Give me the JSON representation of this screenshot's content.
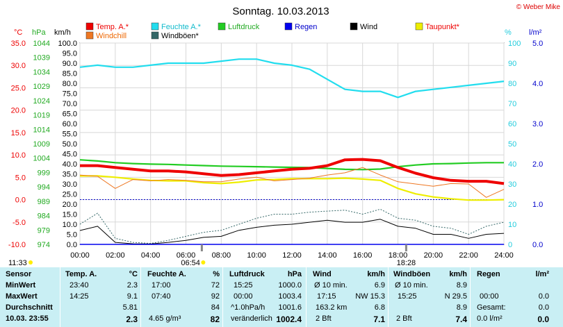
{
  "page": {
    "title": "Sonntag. 10.03.2013",
    "copyright": "© Weber Mike",
    "sun_times": {
      "rise_left": "06:54",
      "set": "18:28",
      "night_left": "11:33"
    }
  },
  "legend": [
    {
      "label": "Temp. A.*",
      "color": "#ee0000"
    },
    {
      "label": "Feuchte A.*",
      "color": "#22ddee"
    },
    {
      "label": "Luftdruck",
      "color": "#22cc22"
    },
    {
      "label": "Regen",
      "color": "#0000ee"
    },
    {
      "label": "Wind",
      "color": "#000000"
    },
    {
      "label": "Taupunkt*",
      "color": "#eeee00"
    },
    {
      "label": "Windchill",
      "color": "#ee7722"
    },
    {
      "label": "Windböen*",
      "color": "#336666"
    }
  ],
  "axes": {
    "temp": {
      "unit": "°C",
      "ticks": [
        "35.0",
        "30.0",
        "25.0",
        "20.0",
        "15.0",
        "10.0",
        "5.0",
        "0.0",
        "-5.0",
        "-10.0"
      ],
      "color": "#ee0000"
    },
    "pressure": {
      "unit": "hPa",
      "ticks": [
        "1044",
        "1039",
        "1034",
        "1029",
        "1024",
        "1019",
        "1014",
        "1009",
        "1004",
        "999",
        "994",
        "989",
        "984",
        "979",
        "974"
      ],
      "color": "#22aa22"
    },
    "wind": {
      "unit": "km/h",
      "ticks": [
        "100.0",
        "95.0",
        "90.0",
        "85.0",
        "80.0",
        "75.0",
        "70.0",
        "65.0",
        "60.0",
        "55.0",
        "50.0",
        "45.0",
        "40.0",
        "35.0",
        "30.0",
        "25.0",
        "20.0",
        "15.0",
        "10.0",
        "5.0",
        "0.0"
      ],
      "color": "#000000"
    },
    "humidity": {
      "unit": "%",
      "ticks": [
        "100",
        "90",
        "80",
        "70",
        "60",
        "50",
        "40",
        "30",
        "20",
        "10",
        "0"
      ],
      "color": "#22ccdd"
    },
    "rain": {
      "unit": "l/m²",
      "ticks": [
        "5.0",
        "4.0",
        "3.0",
        "2.0",
        "1.0",
        "0.0"
      ],
      "color": "#0000cc"
    },
    "time": {
      "ticks": [
        "00:00",
        "02:00",
        "04:00",
        "06:00",
        "08:00",
        "10:00",
        "12:00",
        "14:00",
        "16:00",
        "18:00",
        "20:00",
        "22:00",
        "24:00"
      ]
    }
  },
  "chart_data": {
    "type": "line",
    "title": "Sonntag. 10.03.2013",
    "x": [
      "00:00",
      "01:00",
      "02:00",
      "03:00",
      "04:00",
      "05:00",
      "06:00",
      "07:00",
      "08:00",
      "09:00",
      "10:00",
      "11:00",
      "12:00",
      "13:00",
      "14:00",
      "15:00",
      "16:00",
      "17:00",
      "18:00",
      "19:00",
      "20:00",
      "21:00",
      "22:00",
      "23:00",
      "24:00"
    ],
    "xlim": [
      "00:00",
      "24:00"
    ],
    "series": [
      {
        "name": "Temp. A.*",
        "axis": "°C",
        "ylim": [
          -10,
          35
        ],
        "color": "#ee0000",
        "values": [
          7.6,
          7.6,
          7.2,
          6.8,
          6.4,
          6.4,
          6.2,
          5.8,
          5.4,
          5.6,
          6.0,
          6.4,
          6.8,
          7.0,
          7.6,
          8.9,
          9.0,
          8.7,
          7.2,
          5.9,
          4.9,
          4.3,
          4.1,
          4.1,
          3.6
        ]
      },
      {
        "name": "Feuchte A.*",
        "axis": "%",
        "ylim": [
          0,
          100
        ],
        "color": "#22ddee",
        "values": [
          88,
          89,
          88,
          88,
          89,
          90,
          90,
          90,
          91,
          92,
          92,
          90,
          89,
          87,
          82,
          77,
          76,
          76,
          73,
          76,
          77,
          78,
          79,
          80,
          81
        ]
      },
      {
        "name": "Luftdruck",
        "axis": "hPa",
        "ylim": [
          974,
          1044
        ],
        "color": "#22cc22",
        "values": [
          1003.4,
          1003.0,
          1002.4,
          1002.1,
          1001.9,
          1001.8,
          1001.6,
          1001.4,
          1001.2,
          1001.1,
          1001.0,
          1000.9,
          1000.8,
          1000.7,
          1000.4,
          1000.1,
          1000.0,
          1000.2,
          1001.0,
          1001.6,
          1002.0,
          1002.1,
          1002.3,
          1002.4,
          1002.4
        ]
      },
      {
        "name": "Taupunkt*",
        "axis": "°C",
        "ylim": [
          -10,
          35
        ],
        "color": "#eeee00",
        "values": [
          5.3,
          5.3,
          5.0,
          4.6,
          4.3,
          4.2,
          4.2,
          3.8,
          3.6,
          3.9,
          4.4,
          4.5,
          4.7,
          4.7,
          4.7,
          4.8,
          4.6,
          4.3,
          2.5,
          1.3,
          0.6,
          0.2,
          -0.1,
          -0.1,
          0.0
        ]
      },
      {
        "name": "Windchill",
        "axis": "°C",
        "ylim": [
          -10,
          35
        ],
        "color": "#ee7722",
        "values": [
          5.5,
          5.2,
          2.5,
          4.5,
          4.2,
          4.5,
          4.3,
          4.0,
          4.0,
          4.6,
          5.0,
          4.2,
          4.5,
          4.8,
          5.5,
          6.0,
          7.2,
          5.5,
          4.0,
          3.5,
          3.0,
          3.6,
          3.5,
          0.5,
          2.3
        ]
      },
      {
        "name": "Wind",
        "axis": "km/h",
        "ylim": [
          0,
          100
        ],
        "color": "#000000",
        "values": [
          6.9,
          9.0,
          1.0,
          0.3,
          0.2,
          1.0,
          2.0,
          3.5,
          4.0,
          7.0,
          8.5,
          9.5,
          10.0,
          11.0,
          12.0,
          11.0,
          11.0,
          12.5,
          9.0,
          8.0,
          5.0,
          5.0,
          3.0,
          5.0,
          5.5
        ]
      },
      {
        "name": "Windböen*",
        "axis": "km/h",
        "ylim": [
          0,
          100
        ],
        "color": "#336666",
        "values": [
          10.0,
          15.5,
          3.0,
          1.0,
          0.5,
          2.0,
          4.0,
          6.0,
          7.0,
          10.0,
          13.0,
          15.0,
          15.0,
          16.0,
          16.5,
          17.0,
          15.0,
          17.5,
          13.0,
          12.0,
          9.0,
          8.0,
          5.0,
          9.0,
          11.0
        ]
      },
      {
        "name": "Regen",
        "axis": "l/m²",
        "ylim": [
          0,
          5
        ],
        "color": "#0000ee",
        "values": [
          0.0,
          0.0,
          0.0,
          0.0,
          0.0,
          0.0,
          0.0,
          0.0,
          0.0,
          0.0,
          0.0,
          0.0,
          0.0,
          0.0,
          0.0,
          0.0,
          0.0,
          0.0,
          0.0,
          0.0,
          0.0,
          0.0,
          0.0,
          0.0,
          0.0
        ]
      }
    ],
    "reference_line": {
      "axis": "°C",
      "value": 0.0,
      "color": "#0000cc"
    }
  },
  "table": {
    "col_sensor": [
      "Sensor",
      "MinWert",
      "MaxWert",
      "Durchschnitt",
      "10.03.  23:55"
    ],
    "temp": {
      "header": "Temp. A.",
      "unit": "°C",
      "min_time": "23:40",
      "min": "2.3",
      "max_time": "14:25",
      "max": "9.1",
      "avg": "5.81",
      "current": "2.3"
    },
    "humidity": {
      "header": "Feuchte A.",
      "unit": "%",
      "min_time": "17:00",
      "min": "72",
      "max_time": "07:40",
      "max": "92",
      "avg": "84",
      "abs_hum": "4.65 g/m³",
      "current": "82"
    },
    "pressure": {
      "header": "Luftdruck",
      "unit": "hPa",
      "min_time": "15:25",
      "min": "1000.0",
      "max_time": "00:00",
      "max": "1003.4",
      "trend": "^1.0hPa/h",
      "avg": "1001.6",
      "forecast": "veränderlich",
      "current": "1002.4"
    },
    "wind": {
      "header": "Wind",
      "unit": "km/h",
      "label_avg10": "Ø 10 min.",
      "avg10": "6.9",
      "max_time": "17:15",
      "max_dir": "NW 15.3",
      "distance": "163.2 km",
      "avg": "6.8",
      "bft": "2 Bft",
      "current": "7.1"
    },
    "gusts": {
      "header": "Windböen",
      "unit": "km/h",
      "label_avg10": "Ø 10 min.",
      "avg10": "8.9",
      "max_time": "15:25",
      "max_dir": "N 29.5",
      "avg": "8.9",
      "bft": "2 Bft",
      "current": "7.4"
    },
    "rain": {
      "header": "Regen",
      "unit": "l/m²",
      "max_time": "00:00",
      "max": "0.0",
      "total_label": "Gesamt:",
      "total": "0.0",
      "current_rate": "0.0 l/m²",
      "current": "0.0"
    }
  }
}
